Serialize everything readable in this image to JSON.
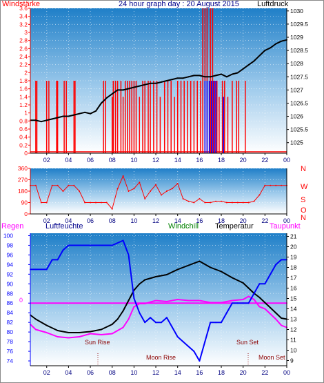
{
  "colors": {
    "bg_top": "#1f7fc8",
    "bg_bottom": "#ffffff",
    "red": "#ff0000",
    "blue": "#0000ff",
    "black": "#000000",
    "magenta": "#ff00ff",
    "green": "#008000",
    "navy": "#000080",
    "dark_red": "#c00000"
  },
  "panel1": {
    "title": "24 hour graph day : 20 August 2015",
    "left_label": "Windstärke",
    "right_label": "Luftdruck"
  },
  "panel3": {
    "labels": {
      "regen": "Regen",
      "luftfeuchte": "Luftfeuchte",
      "windchill": "Windchill",
      "temperatur": "Temperatur",
      "taupunkt": "Taupunkt"
    },
    "annotations": {
      "sun_rise": "Sun Rise",
      "moon_rise": "Moon Rise",
      "sun_set": "Sun Set",
      "moon_set": "Moon Set",
      "regen_zero": "0"
    }
  },
  "chart_data": [
    {
      "type": "line",
      "name": "panel1",
      "x_ticks": [
        "02",
        "04",
        "06",
        "08",
        "10",
        "12",
        "14",
        "16",
        "18",
        "20",
        "22",
        "00"
      ],
      "y_left_ticks": [
        "0",
        "0.2",
        "0.4",
        "0.6",
        "0.8",
        "1",
        "1.2",
        "1.4",
        "1.6",
        "1.8",
        "2",
        "2.2",
        "2.4",
        "2.6",
        "2.8",
        "3",
        "3.2",
        "3.4",
        "3.6"
      ],
      "y_left_range": [
        0,
        3.6
      ],
      "y_right_ticks": [
        "1025",
        "1025.5",
        "1026",
        "1026.5",
        "1027",
        "1027.5",
        "1028",
        "1028.5",
        "1029",
        "1029.5",
        "1030"
      ],
      "y_right_range": [
        1024.6,
        1030.1
      ],
      "x_range": [
        0.5,
        24
      ],
      "series": [
        {
          "color": "black",
          "axis": "right",
          "x": [
            0.5,
            1,
            1.5,
            2,
            2.5,
            3,
            3.5,
            4,
            4.5,
            5,
            5.5,
            6,
            6.5,
            7,
            7.5,
            8,
            8.5,
            9,
            9.5,
            10,
            10.5,
            11,
            11.5,
            12,
            12.5,
            13,
            13.5,
            14,
            14.5,
            15,
            15.5,
            16,
            16.5,
            17,
            17.5,
            18,
            18.5,
            19,
            19.5,
            20,
            20.5,
            21,
            21.5,
            22,
            22.5,
            23,
            23.5,
            24
          ],
          "values": [
            1025.85,
            1025.85,
            1025.8,
            1025.85,
            1025.9,
            1025.95,
            1026.0,
            1026.0,
            1026.05,
            1026.1,
            1026.15,
            1026.1,
            1026.2,
            1026.5,
            1026.7,
            1026.85,
            1027.0,
            1027.0,
            1027.05,
            1027.1,
            1027.15,
            1027.2,
            1027.25,
            1027.25,
            1027.3,
            1027.35,
            1027.4,
            1027.45,
            1027.45,
            1027.5,
            1027.55,
            1027.55,
            1027.5,
            1027.5,
            1027.55,
            1027.6,
            1027.5,
            1027.6,
            1027.65,
            1027.8,
            1027.95,
            1028.1,
            1028.3,
            1028.5,
            1028.6,
            1028.75,
            1028.85,
            1028.9
          ]
        },
        {
          "color": "red",
          "axis": "left",
          "note": "gust spikes",
          "x": [
            1.0,
            1.1,
            2.0,
            2.2,
            2.9,
            3.0,
            3.6,
            3.8,
            4.5,
            4.6,
            7.2,
            7.4,
            8.0,
            8.1,
            8.3,
            8.5,
            8.8,
            9.0,
            9.2,
            9.4,
            9.6,
            9.8,
            10.0,
            10.2,
            10.5,
            10.8,
            11.0,
            11.3,
            11.5,
            11.8,
            12.1,
            12.4,
            12.8,
            13.1,
            13.4,
            13.7,
            14.0,
            14.3,
            14.6,
            14.9,
            15.2,
            15.5,
            15.8,
            16.1,
            16.3,
            16.5,
            16.7,
            17.0,
            17.2,
            17.4,
            17.6,
            17.8,
            18.1,
            18.3,
            18.6,
            19.0,
            19.4,
            19.6,
            20.2
          ],
          "values": [
            1.8,
            1.8,
            1.8,
            1.8,
            1.8,
            1.8,
            1.8,
            1.8,
            1.8,
            1.8,
            1.8,
            1.8,
            1.4,
            1.8,
            1.8,
            1.8,
            1.8,
            1.4,
            1.8,
            1.8,
            1.8,
            1.8,
            1.8,
            1.8,
            1.4,
            1.8,
            1.8,
            1.8,
            1.8,
            1.8,
            1.8,
            1.4,
            1.8,
            1.8,
            1.8,
            1.4,
            1.8,
            1.8,
            1.8,
            1.8,
            1.8,
            1.8,
            1.8,
            1.8,
            3.6,
            3.6,
            3.6,
            3.6,
            3.6,
            1.8,
            1.8,
            1.4,
            1.8,
            1.8,
            1.4,
            1.8,
            1.8,
            1.8,
            1.8
          ]
        },
        {
          "color": "blue",
          "axis": "left",
          "x": [
            16.5,
            16.7,
            16.9,
            17.1,
            17.3,
            17.5,
            18.2
          ],
          "values": [
            1.8,
            1.8,
            1.8,
            1.8,
            1.8,
            1.8,
            1.4
          ]
        }
      ]
    },
    {
      "type": "line",
      "name": "panel2",
      "x_ticks": [
        "02",
        "04",
        "06",
        "08",
        "10",
        "12",
        "14",
        "16",
        "18",
        "20",
        "22",
        "00"
      ],
      "y_ticks": [
        "0",
        "90",
        "180",
        "270",
        "360"
      ],
      "y_range": [
        0,
        360
      ],
      "compass_labels": [
        "N",
        "W",
        "S",
        "O",
        "N"
      ],
      "series": [
        {
          "color": "red",
          "x": [
            0.5,
            1.0,
            1.5,
            2.0,
            2.5,
            3.0,
            3.5,
            4.0,
            4.5,
            5.0,
            5.5,
            6.0,
            6.5,
            7.0,
            7.5,
            8.0,
            8.5,
            9.0,
            9.5,
            10.0,
            10.5,
            11.0,
            11.5,
            12.0,
            12.5,
            13.0,
            13.5,
            14.0,
            14.5,
            15.0,
            15.5,
            16.0,
            16.5,
            17.0,
            17.5,
            18.0,
            18.5,
            19.0,
            19.5,
            20.0,
            20.5,
            21.0,
            21.5,
            22.0,
            22.5,
            23.0,
            23.5,
            24.0
          ],
          "values": [
            225,
            225,
            90,
            90,
            225,
            225,
            180,
            225,
            225,
            180,
            90,
            90,
            90,
            90,
            90,
            40,
            200,
            300,
            180,
            200,
            250,
            120,
            180,
            230,
            150,
            180,
            200,
            240,
            120,
            100,
            90,
            120,
            90,
            90,
            100,
            100,
            90,
            90,
            90,
            90,
            90,
            100,
            150,
            225,
            225,
            225,
            225,
            225
          ]
        }
      ]
    },
    {
      "type": "line",
      "name": "panel3",
      "x_ticks": [
        "02",
        "04",
        "06",
        "08",
        "10",
        "12",
        "14",
        "16",
        "18",
        "20",
        "22",
        "00"
      ],
      "y_left_ticks": [
        "74",
        "76",
        "78",
        "80",
        "82",
        "84",
        "86",
        "88",
        "90",
        "92",
        "94",
        "96",
        "98",
        "100"
      ],
      "y_left_range": [
        73,
        100.5
      ],
      "y_right_ticks": [
        "9",
        "10",
        "11",
        "12",
        "13",
        "14",
        "15",
        "16",
        "17",
        "18",
        "19",
        "20",
        "21"
      ],
      "y_right_range": [
        8.5,
        21.3
      ],
      "x_range": [
        0.5,
        24
      ],
      "series": [
        {
          "color": "blue",
          "axis": "left",
          "x": [
            0.5,
            1,
            2,
            2.5,
            3,
            3.5,
            4,
            4.5,
            5,
            6,
            7,
            8,
            9,
            9.5,
            10,
            10.5,
            11,
            11.5,
            12,
            12.5,
            13,
            13.5,
            14,
            14.5,
            15,
            15.5,
            16,
            16.5,
            17,
            17.5,
            18,
            18.5,
            19,
            19.5,
            20,
            20.5,
            21,
            21.5,
            22,
            22.5,
            23,
            23.5,
            24
          ],
          "values": [
            93,
            93,
            93,
            95,
            95,
            97,
            98,
            98,
            98,
            98,
            98,
            98,
            99,
            96,
            87,
            84,
            82,
            83,
            82,
            82,
            83,
            81,
            79,
            78,
            77,
            76,
            74,
            78,
            82,
            82,
            82,
            84,
            86,
            86,
            86,
            86,
            88,
            90,
            90,
            92,
            94,
            95,
            95
          ]
        },
        {
          "color": "black",
          "axis": "right",
          "x": [
            0.5,
            1,
            2,
            3,
            4,
            5,
            6,
            7,
            8,
            8.5,
            9,
            9.5,
            10,
            10.5,
            11,
            12,
            13,
            14,
            15,
            16,
            16.5,
            17,
            18,
            19,
            20,
            20.5,
            21,
            21.5,
            22,
            22.5,
            23,
            23.5,
            24
          ],
          "values": [
            13.4,
            13.0,
            12.4,
            11.9,
            11.7,
            11.7,
            11.8,
            12.0,
            12.5,
            13.0,
            13.8,
            14.8,
            15.8,
            16.4,
            16.8,
            17.1,
            17.3,
            17.8,
            18.2,
            18.6,
            18.3,
            18.0,
            17.6,
            17.0,
            16.5,
            16.0,
            15.5,
            15.1,
            14.6,
            14.1,
            13.6,
            13.1,
            13.0
          ]
        },
        {
          "color": "magenta",
          "axis": "right",
          "x": [
            0.5,
            1,
            2,
            3,
            4,
            5,
            6,
            7,
            8,
            9,
            9.5,
            10,
            10.5,
            11,
            12,
            13,
            14,
            15,
            16,
            17,
            18,
            19,
            20,
            20.5,
            21,
            21.5,
            22,
            22.5,
            23,
            23.5,
            24
          ],
          "values": [
            12.5,
            12.0,
            11.7,
            11.3,
            11.2,
            11.3,
            11.6,
            11.5,
            11.6,
            12.2,
            13.0,
            14.2,
            14.5,
            14.5,
            14.8,
            14.7,
            14.9,
            14.8,
            14.8,
            14.6,
            14.6,
            14.8,
            14.9,
            15.2,
            14.9,
            14.2,
            14.0,
            13.5,
            13.0,
            12.4,
            12.2
          ]
        },
        {
          "color": "magenta",
          "axis": "left",
          "note": "rain baseline",
          "x": [
            0.5,
            24
          ],
          "values": [
            86,
            86
          ]
        }
      ]
    }
  ]
}
